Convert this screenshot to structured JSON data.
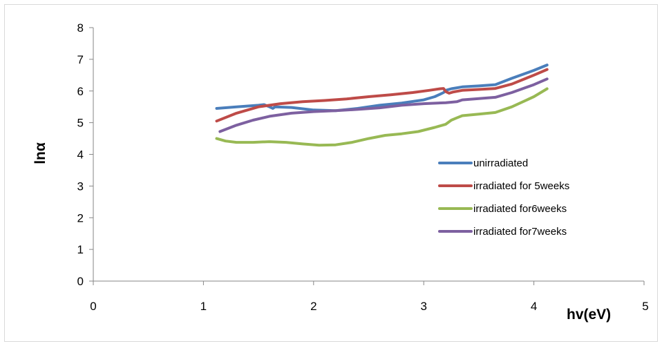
{
  "chart_data": {
    "type": "line",
    "xlabel": "hv(eV)",
    "ylabel": "lnα",
    "xlim": [
      0,
      5
    ],
    "ylim": [
      0,
      8
    ],
    "x_ticks": [
      "0",
      "1",
      "2",
      "3",
      "4",
      "5"
    ],
    "y_ticks": [
      "0",
      "1",
      "2",
      "3",
      "4",
      "5",
      "6",
      "7",
      "8"
    ],
    "grid": false,
    "legend_position": "right",
    "series": [
      {
        "name": "unirradiated",
        "color": "#4a7ebb",
        "x": [
          1.12,
          1.3,
          1.5,
          1.55,
          1.6,
          1.63,
          1.65,
          1.8,
          2.0,
          2.2,
          2.4,
          2.6,
          2.8,
          3.0,
          3.1,
          3.15,
          3.18,
          3.2,
          3.25,
          3.35,
          3.5,
          3.65,
          3.8,
          4.0,
          4.12
        ],
        "y": [
          5.45,
          5.5,
          5.55,
          5.57,
          5.5,
          5.45,
          5.5,
          5.48,
          5.4,
          5.38,
          5.45,
          5.55,
          5.62,
          5.72,
          5.82,
          5.9,
          5.95,
          6.02,
          6.07,
          6.13,
          6.16,
          6.2,
          6.4,
          6.65,
          6.82
        ]
      },
      {
        "name": "irradiated for 5weeks",
        "color": "#be4b48",
        "x": [
          1.12,
          1.3,
          1.5,
          1.7,
          1.9,
          2.1,
          2.3,
          2.5,
          2.7,
          2.9,
          3.05,
          3.15,
          3.18,
          3.2,
          3.23,
          3.27,
          3.35,
          3.5,
          3.65,
          3.8,
          4.0,
          4.12
        ],
        "y": [
          5.05,
          5.3,
          5.5,
          5.6,
          5.66,
          5.7,
          5.75,
          5.82,
          5.88,
          5.95,
          6.02,
          6.07,
          6.08,
          5.98,
          5.93,
          5.97,
          6.02,
          6.05,
          6.08,
          6.22,
          6.5,
          6.68
        ]
      },
      {
        "name": "irradiated for6weeks",
        "color": "#98b954",
        "x": [
          1.12,
          1.2,
          1.3,
          1.45,
          1.6,
          1.75,
          1.9,
          2.05,
          2.2,
          2.35,
          2.5,
          2.65,
          2.8,
          2.95,
          3.1,
          3.2,
          3.25,
          3.3,
          3.35,
          3.5,
          3.65,
          3.8,
          4.0,
          4.12
        ],
        "y": [
          4.5,
          4.42,
          4.38,
          4.38,
          4.4,
          4.38,
          4.33,
          4.29,
          4.3,
          4.38,
          4.5,
          4.6,
          4.65,
          4.72,
          4.85,
          4.95,
          5.08,
          5.15,
          5.22,
          5.27,
          5.32,
          5.5,
          5.82,
          6.07
        ]
      },
      {
        "name": "irradiated for7weeks",
        "color": "#7d60a0",
        "x": [
          1.15,
          1.3,
          1.45,
          1.6,
          1.8,
          2.0,
          2.2,
          2.4,
          2.6,
          2.8,
          3.0,
          3.2,
          3.3,
          3.35,
          3.5,
          3.65,
          3.8,
          4.0,
          4.12
        ],
        "y": [
          4.72,
          4.92,
          5.08,
          5.2,
          5.3,
          5.35,
          5.38,
          5.42,
          5.47,
          5.55,
          5.6,
          5.63,
          5.66,
          5.72,
          5.76,
          5.8,
          5.95,
          6.2,
          6.38
        ]
      }
    ]
  }
}
